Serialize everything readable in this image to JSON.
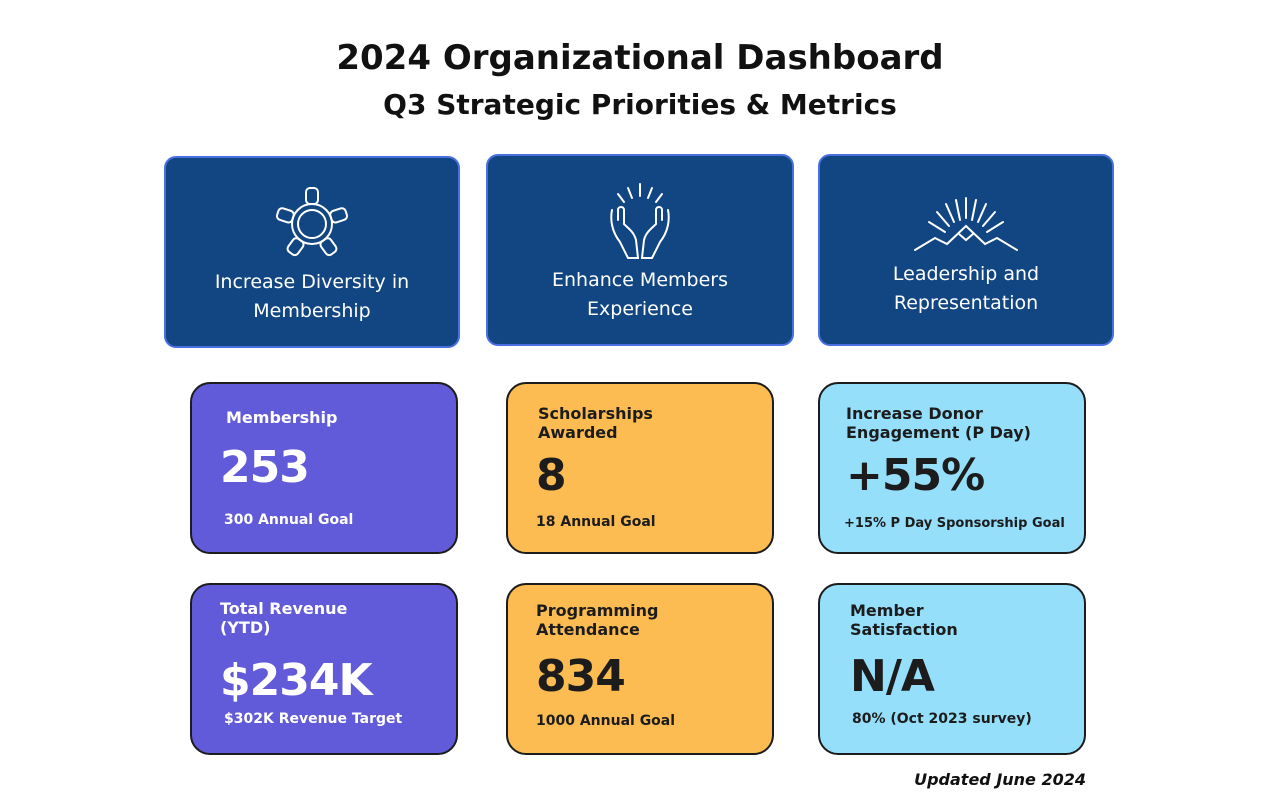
{
  "header": {
    "title": "2024 Organizational Dashboard",
    "subtitle": "Q3 Strategic Priorities & Metrics"
  },
  "priorities": [
    {
      "label": "Increase Diversity in\nMembership",
      "icon": "hands-circle-icon"
    },
    {
      "label": "Enhance Members\nExperience",
      "icon": "raised-hands-icon"
    },
    {
      "label": "Leadership and\nRepresentation",
      "icon": "mountain-sunrise-icon"
    }
  ],
  "metrics": {
    "membership": {
      "label": "Membership",
      "value": "253",
      "goal": "300 Annual Goal"
    },
    "scholarships": {
      "label": "Scholarships\nAwarded",
      "value": "8",
      "goal": "18 Annual Goal"
    },
    "donor": {
      "label": "Increase Donor\nEngagement (P Day)",
      "value": "+55%",
      "goal": "+15% P Day Sponsorship Goal"
    },
    "revenue": {
      "label": "Total Revenue\n(YTD)",
      "value": "$234K",
      "goal": "$302K Revenue Target"
    },
    "programming": {
      "label": "Programming\nAttendance",
      "value": "834",
      "goal": "1000 Annual Goal"
    },
    "satisfaction": {
      "label": "Member\nSatisfaction",
      "value": "N/A",
      "goal": "80% (Oct 2023 survey)"
    }
  },
  "colors": {
    "priority_bg": "#124682",
    "purple": "#625bd9",
    "orange": "#fdbc52",
    "blue": "#96dffb"
  },
  "footer": {
    "updated": "Updated June 2024"
  }
}
